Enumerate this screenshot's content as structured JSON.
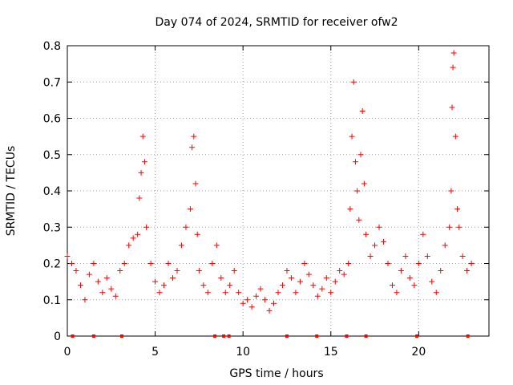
{
  "chart_data": {
    "type": "scatter",
    "title": "Day 074 of 2024, SRMTID for receiver ofw2",
    "xlabel": "GPS time / hours",
    "ylabel": "SRMTID / TECUs",
    "xlim": [
      0,
      24
    ],
    "ylim": [
      0,
      0.8
    ],
    "x_ticks": [
      0,
      5,
      10,
      15,
      20
    ],
    "x_tick_labels": [
      "0",
      "5",
      "10",
      "15",
      "20"
    ],
    "y_ticks": [
      0,
      0.1,
      0.2,
      0.3,
      0.4,
      0.5,
      0.6,
      0.7,
      0.8
    ],
    "y_tick_labels": [
      "0",
      "0.1",
      "0.2",
      "0.3",
      "0.4",
      "0.5",
      "0.6",
      "0.7",
      "0.8"
    ],
    "grid": true,
    "marker": "+",
    "color": "#ff0000",
    "series": [
      {
        "name": "SRMTID",
        "x": [
          0.0,
          0.25,
          0.5,
          0.75,
          1.0,
          1.25,
          1.5,
          1.75,
          2.0,
          2.25,
          2.5,
          2.75,
          3.0,
          3.25,
          3.5,
          3.75,
          4.0,
          4.1,
          4.2,
          4.3,
          4.4,
          4.5,
          4.75,
          5.0,
          5.25,
          5.5,
          5.75,
          6.0,
          6.25,
          6.5,
          6.75,
          7.0,
          7.1,
          7.2,
          7.3,
          7.4,
          7.5,
          7.75,
          8.0,
          8.25,
          8.5,
          8.75,
          9.0,
          9.25,
          9.5,
          9.75,
          10.0,
          10.25,
          10.5,
          10.75,
          11.0,
          11.25,
          11.5,
          11.75,
          12.0,
          12.25,
          12.5,
          12.75,
          13.0,
          13.25,
          13.5,
          13.75,
          14.0,
          14.25,
          14.5,
          14.75,
          15.0,
          15.25,
          15.5,
          15.75,
          16.0,
          16.1,
          16.2,
          16.3,
          16.4,
          16.5,
          16.6,
          16.7,
          16.8,
          16.9,
          17.0,
          17.25,
          17.5,
          17.75,
          18.0,
          18.25,
          18.5,
          18.75,
          19.0,
          19.25,
          19.5,
          19.75,
          20.0,
          20.25,
          20.5,
          20.75,
          21.0,
          21.25,
          21.5,
          21.75,
          21.85,
          21.9,
          21.95,
          22.0,
          22.1,
          22.2,
          22.3,
          22.5,
          22.75,
          23.0
        ],
        "y": [
          0.22,
          0.2,
          0.18,
          0.14,
          0.1,
          0.17,
          0.2,
          0.15,
          0.12,
          0.16,
          0.13,
          0.11,
          0.18,
          0.2,
          0.25,
          0.27,
          0.28,
          0.38,
          0.45,
          0.55,
          0.48,
          0.3,
          0.2,
          0.15,
          0.12,
          0.14,
          0.2,
          0.16,
          0.18,
          0.25,
          0.3,
          0.35,
          0.52,
          0.55,
          0.42,
          0.28,
          0.18,
          0.14,
          0.12,
          0.2,
          0.25,
          0.16,
          0.12,
          0.14,
          0.18,
          0.12,
          0.09,
          0.1,
          0.08,
          0.11,
          0.13,
          0.1,
          0.07,
          0.09,
          0.12,
          0.14,
          0.18,
          0.16,
          0.12,
          0.15,
          0.2,
          0.17,
          0.14,
          0.11,
          0.13,
          0.16,
          0.12,
          0.15,
          0.18,
          0.17,
          0.2,
          0.35,
          0.55,
          0.7,
          0.48,
          0.4,
          0.32,
          0.5,
          0.62,
          0.42,
          0.28,
          0.22,
          0.25,
          0.3,
          0.26,
          0.2,
          0.14,
          0.12,
          0.18,
          0.22,
          0.16,
          0.14,
          0.2,
          0.28,
          0.22,
          0.15,
          0.12,
          0.18,
          0.25,
          0.3,
          0.4,
          0.63,
          0.74,
          0.78,
          0.55,
          0.35,
          0.3,
          0.22,
          0.18,
          0.2
        ]
      }
    ],
    "baseline_markers_x": [
      0.3,
      1.5,
      3.1,
      8.4,
      8.9,
      9.2,
      12.5,
      14.2,
      15.9,
      17.0,
      19.9,
      22.8
    ]
  }
}
